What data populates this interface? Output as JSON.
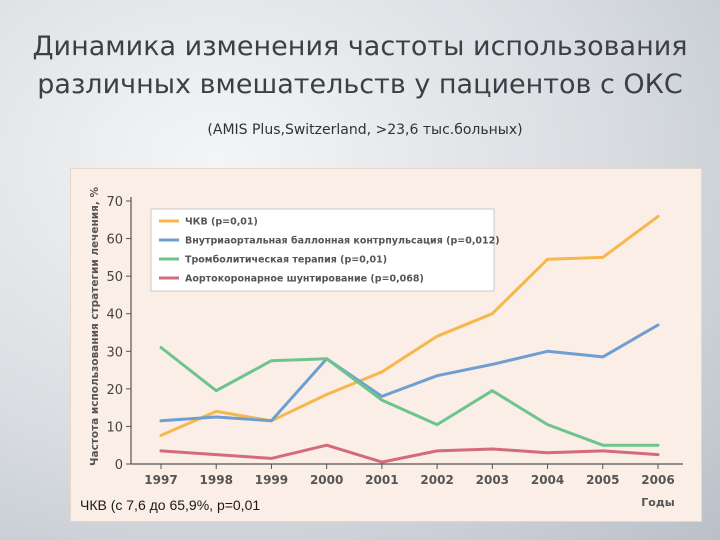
{
  "slide": {
    "title_line1": "Динамика изменения частоты использования",
    "title_line2": "различных вмешательств у пациентов с ОКС",
    "subtitle": "(AMIS Plus,Switzerland, >23,6 тыс.больных)",
    "caption": "ЧКВ (с 7,6 до 65,9%, р=0,01"
  },
  "chart_data": {
    "type": "line",
    "x": [
      "1997",
      "1998",
      "1999",
      "2000",
      "2001",
      "2002",
      "2003",
      "2004",
      "2005",
      "2006"
    ],
    "xlabel": "Годы",
    "ylabel": "Частота использования стратегии лечения, %",
    "ylim": [
      0,
      70
    ],
    "yticks": [
      0,
      10,
      20,
      30,
      40,
      50,
      60,
      70
    ],
    "grid": false,
    "legend_position": "top-left",
    "series": [
      {
        "name": "ЧКВ (р=0,01)",
        "color": "#f6b74c",
        "values": [
          7.6,
          14,
          11.5,
          18.5,
          24.5,
          34,
          40,
          54.5,
          55,
          65.9
        ]
      },
      {
        "name": "Внутриаортальная баллонная контрпульсация (р=0,012)",
        "color": "#6f9fd1",
        "values": [
          11.5,
          12.5,
          11.5,
          28,
          18,
          23.5,
          26.5,
          30,
          28.5,
          37
        ]
      },
      {
        "name": "Тромболитическая терапия (р=0,01)",
        "color": "#6cc58a",
        "values": [
          31,
          19.5,
          27.5,
          28,
          17,
          10.5,
          19.5,
          10.5,
          5,
          5
        ]
      },
      {
        "name": "Аортокоронарное шунтирование (р=0,068)",
        "color": "#d36b7a",
        "values": [
          3.5,
          2.5,
          1.5,
          5,
          0.5,
          3.5,
          4,
          3,
          3.5,
          2.5
        ]
      }
    ]
  }
}
